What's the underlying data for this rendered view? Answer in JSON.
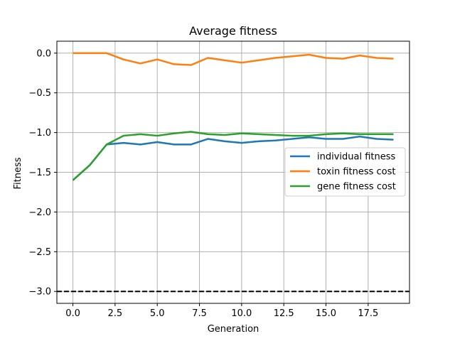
{
  "chart_data": {
    "type": "line",
    "title": "Average fitness",
    "xlabel": "Generation",
    "ylabel": "Fitness",
    "xlim": [
      -0.95,
      19.95
    ],
    "ylim": [
      -3.15,
      0.15
    ],
    "xticks": [
      0.0,
      2.5,
      5.0,
      7.5,
      10.0,
      12.5,
      15.0,
      17.5
    ],
    "xtick_labels": [
      "0.0",
      "2.5",
      "5.0",
      "7.5",
      "10.0",
      "12.5",
      "15.0",
      "17.5"
    ],
    "yticks": [
      0.0,
      -0.5,
      -1.0,
      -1.5,
      -2.0,
      -2.5,
      -3.0
    ],
    "ytick_labels": [
      "0.0",
      "−0.5",
      "−1.0",
      "−1.5",
      "−2.0",
      "−2.5",
      "−3.0"
    ],
    "grid": true,
    "legend_position": "center-right",
    "x": [
      0,
      1,
      2,
      3,
      4,
      5,
      6,
      7,
      8,
      9,
      10,
      11,
      12,
      13,
      14,
      15,
      16,
      17,
      18,
      19
    ],
    "series": [
      {
        "name": "individual fitness",
        "color": "#1f77b4",
        "values": [
          -1.6,
          -1.41,
          -1.15,
          -1.13,
          -1.15,
          -1.12,
          -1.15,
          -1.15,
          -1.08,
          -1.11,
          -1.13,
          -1.11,
          -1.1,
          -1.08,
          -1.06,
          -1.08,
          -1.08,
          -1.05,
          -1.08,
          -1.09
        ]
      },
      {
        "name": "toxin fitness cost",
        "color": "#ff7f0e",
        "values": [
          0.0,
          0.0,
          0.0,
          -0.08,
          -0.13,
          -0.08,
          -0.14,
          -0.15,
          -0.06,
          -0.09,
          -0.12,
          -0.09,
          -0.06,
          -0.04,
          -0.02,
          -0.06,
          -0.07,
          -0.03,
          -0.06,
          -0.07
        ]
      },
      {
        "name": "gene fitness cost",
        "color": "#2ca02c",
        "values": [
          -1.6,
          -1.41,
          -1.15,
          -1.04,
          -1.02,
          -1.04,
          -1.01,
          -0.99,
          -1.02,
          -1.03,
          -1.01,
          -1.02,
          -1.03,
          -1.04,
          -1.04,
          -1.02,
          -1.01,
          -1.02,
          -1.02,
          -1.02
        ]
      }
    ],
    "reference_line": {
      "y": -3.0,
      "style": "dashed",
      "color": "#000000"
    }
  }
}
